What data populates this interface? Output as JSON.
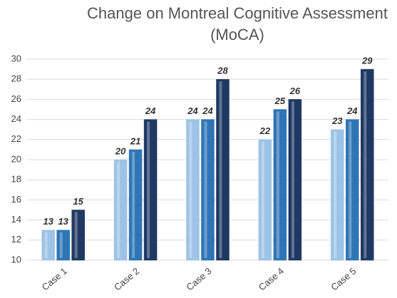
{
  "chart_data": {
    "type": "bar",
    "title": [
      "Change on Montreal Cognitive Assessment",
      "(MoCA)"
    ],
    "categories": [
      "Case 1",
      "Case 2",
      "Case 3",
      "Case 4",
      "Case 5"
    ],
    "series": [
      {
        "color": "#9dc3e6",
        "values": [
          13,
          20,
          24,
          22,
          23
        ]
      },
      {
        "color": "#2e75b6",
        "values": [
          13,
          21,
          24,
          25,
          24
        ]
      },
      {
        "color": "#1f3864",
        "values": [
          15,
          24,
          28,
          26,
          29
        ]
      }
    ],
    "ylim": [
      10,
      30
    ],
    "yticks": [
      10,
      12,
      14,
      16,
      18,
      20,
      22,
      24,
      26,
      28,
      30
    ],
    "grid": true
  }
}
